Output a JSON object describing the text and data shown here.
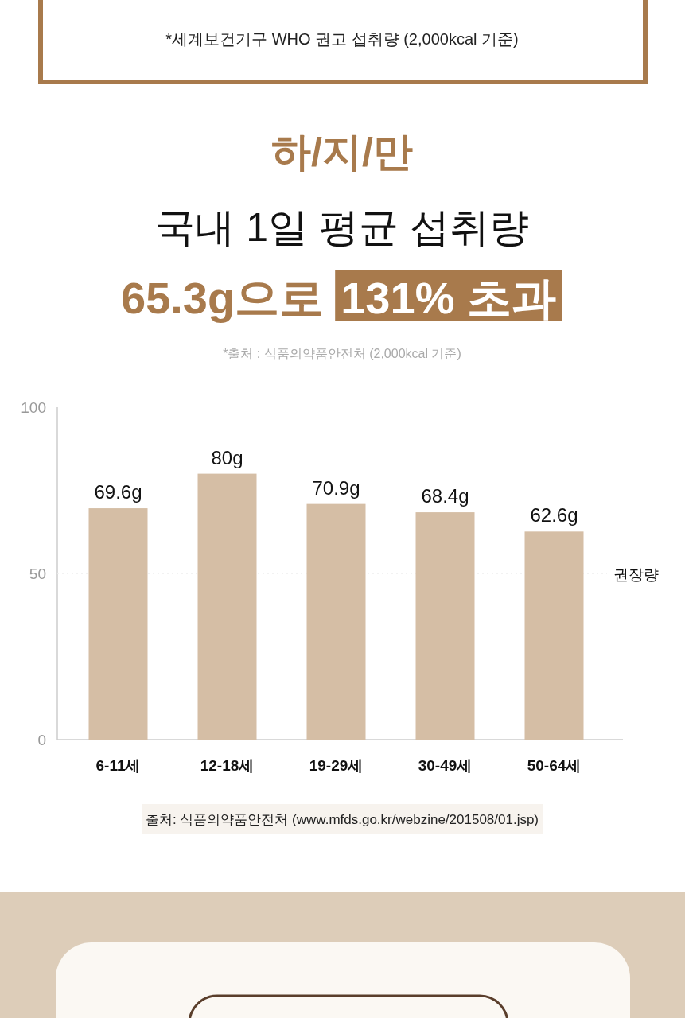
{
  "chart_data": {
    "type": "bar",
    "title": "국내 1일 평균 섭취량",
    "subtitle": "65.3g으로 131% 초과",
    "annotations": [
      "*세계보건기구 WHO 권고 섭취량 (2,000kcal 기준)",
      "하/지/만",
      "*출처 : 식품의약품안전처 (2,000kcal 기준)",
      "출처: 식품의약품안전처 (www.mfds.go.kr/webzine/201508/01.jsp)"
    ],
    "categories": [
      "6-11세",
      "12-18세",
      "19-29세",
      "30-49세",
      "50-64세"
    ],
    "values": [
      69.6,
      80,
      70.9,
      68.4,
      62.6
    ],
    "value_labels": [
      "69.6g",
      "80g",
      "70.9g",
      "68.4g",
      "62.6g"
    ],
    "color": "#d5bea5",
    "ylim": [
      0,
      100
    ],
    "yticks": [
      0,
      50,
      100
    ],
    "ref_lines": [
      {
        "axis": "y",
        "value": 50,
        "label": "권장량",
        "color": "#eeeeee",
        "line_style": "dotted"
      }
    ]
  }
}
